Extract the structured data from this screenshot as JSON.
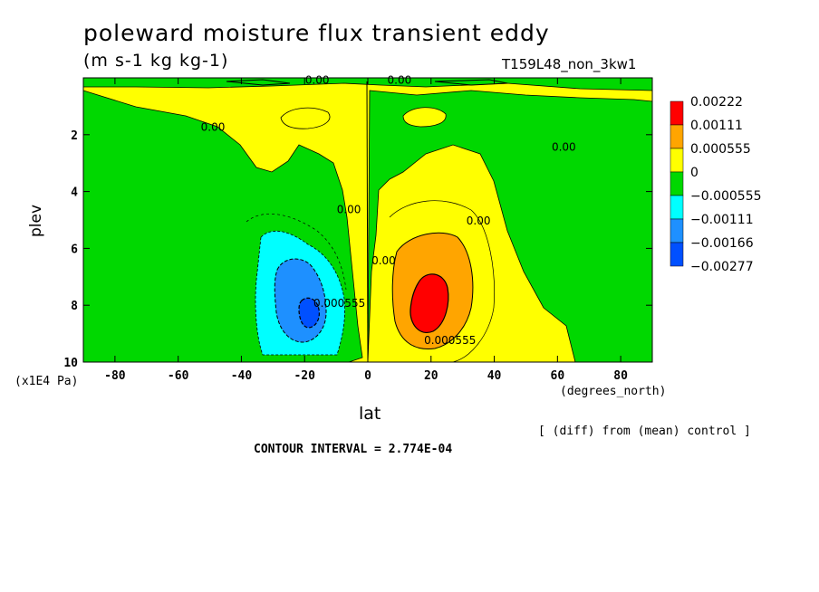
{
  "chart_data": {
    "type": "heatmap",
    "title": "poleward moisture flux transient eddy",
    "units": "(m s-1 kg kg-1)",
    "run_id": "T159L48_non_3kw1",
    "xlabel": "lat",
    "x_units": "(degrees_north)",
    "ylabel": "plev",
    "y_units": "(x1E4 Pa)",
    "xlim": [
      -90,
      90
    ],
    "ylim": [
      10,
      0
    ],
    "x_ticks": [
      -80,
      -60,
      -40,
      -20,
      0,
      20,
      40,
      60,
      80
    ],
    "x_tick_labels": [
      "-80",
      "-60",
      "-40",
      "-20",
      "0",
      "20",
      "40",
      "60",
      "80"
    ],
    "y_ticks": [
      2,
      4,
      6,
      8,
      10
    ],
    "y_tick_labels": [
      "2",
      "4",
      "6",
      "8",
      "10"
    ],
    "note": "[ (diff) from (mean) control ]",
    "contour_interval_text": "CONTOUR INTERVAL = 2.774E-04",
    "legend": {
      "placement": "right",
      "levels": [
        {
          "label": "0.00222",
          "color": "#ff0000"
        },
        {
          "label": "0.00111",
          "color": "#ffa500"
        },
        {
          "label": "0.000555",
          "color": "#ffff00"
        },
        {
          "label": "0",
          "color": "#00d800"
        },
        {
          "label": "−0.000555",
          "color": "#00ffff"
        },
        {
          "label": "−0.00111",
          "color": "#1e90ff"
        },
        {
          "label": "−0.00166",
          "color": "#0050ff"
        },
        {
          "label": "−0.00277",
          "color": null
        }
      ]
    },
    "contour_labels": [
      {
        "text": "0.00",
        "lat": -49,
        "plev": 1.7
      },
      {
        "text": "0.00",
        "lat": -16,
        "plev": 0.05
      },
      {
        "text": "0.00",
        "lat": 10,
        "plev": 0.05
      },
      {
        "text": "0.00",
        "lat": 62,
        "plev": 2.4
      },
      {
        "text": "0.00",
        "lat": -6,
        "plev": 4.6
      },
      {
        "text": "0.00",
        "lat": 5,
        "plev": 6.4
      },
      {
        "text": "0.00",
        "lat": 35,
        "plev": 5.0
      },
      {
        "text": "0.000555",
        "lat": -9,
        "plev": 7.9
      },
      {
        "text": "0.000555",
        "lat": 26,
        "plev": 9.2
      }
    ],
    "anomaly_regions": [
      {
        "sign": "positive",
        "center_lat": 20,
        "center_plev": 8.2,
        "peak_value": 0.00222
      },
      {
        "sign": "negative",
        "center_lat": -18,
        "center_plev": 8.3,
        "peak_value": -0.00166
      }
    ],
    "colors": {
      "positive_small": "#ffff00",
      "negative_small": "#00d800"
    }
  }
}
